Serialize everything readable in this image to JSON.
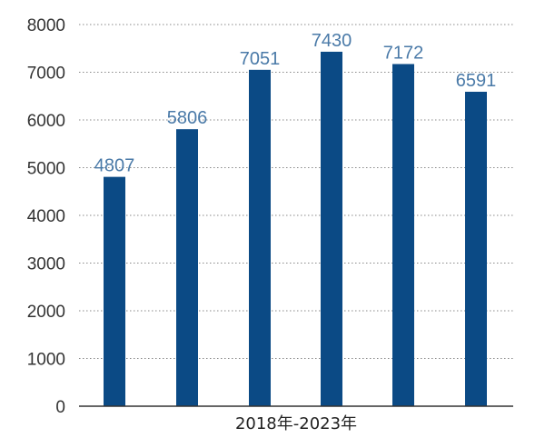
{
  "chart_data": {
    "type": "bar",
    "categories": [
      "",
      "",
      "",
      "",
      "",
      ""
    ],
    "values": [
      4807,
      5806,
      7051,
      7430,
      7172,
      6591
    ],
    "data_labels": [
      "4807",
      "5806",
      "7051",
      "7430",
      "7172",
      "6591"
    ],
    "title": "",
    "xlabel": "2018年-2023年",
    "ylabel": "",
    "ylim": [
      0,
      8000
    ],
    "yticks": [
      "0",
      "1000",
      "2000",
      "3000",
      "4000",
      "5000",
      "6000",
      "7000",
      "8000"
    ],
    "grid": true,
    "legend": "none",
    "colors": {
      "bar": "#0b4a85",
      "data_label": "#4a7aa8",
      "grid": "#8a8a8a"
    }
  }
}
